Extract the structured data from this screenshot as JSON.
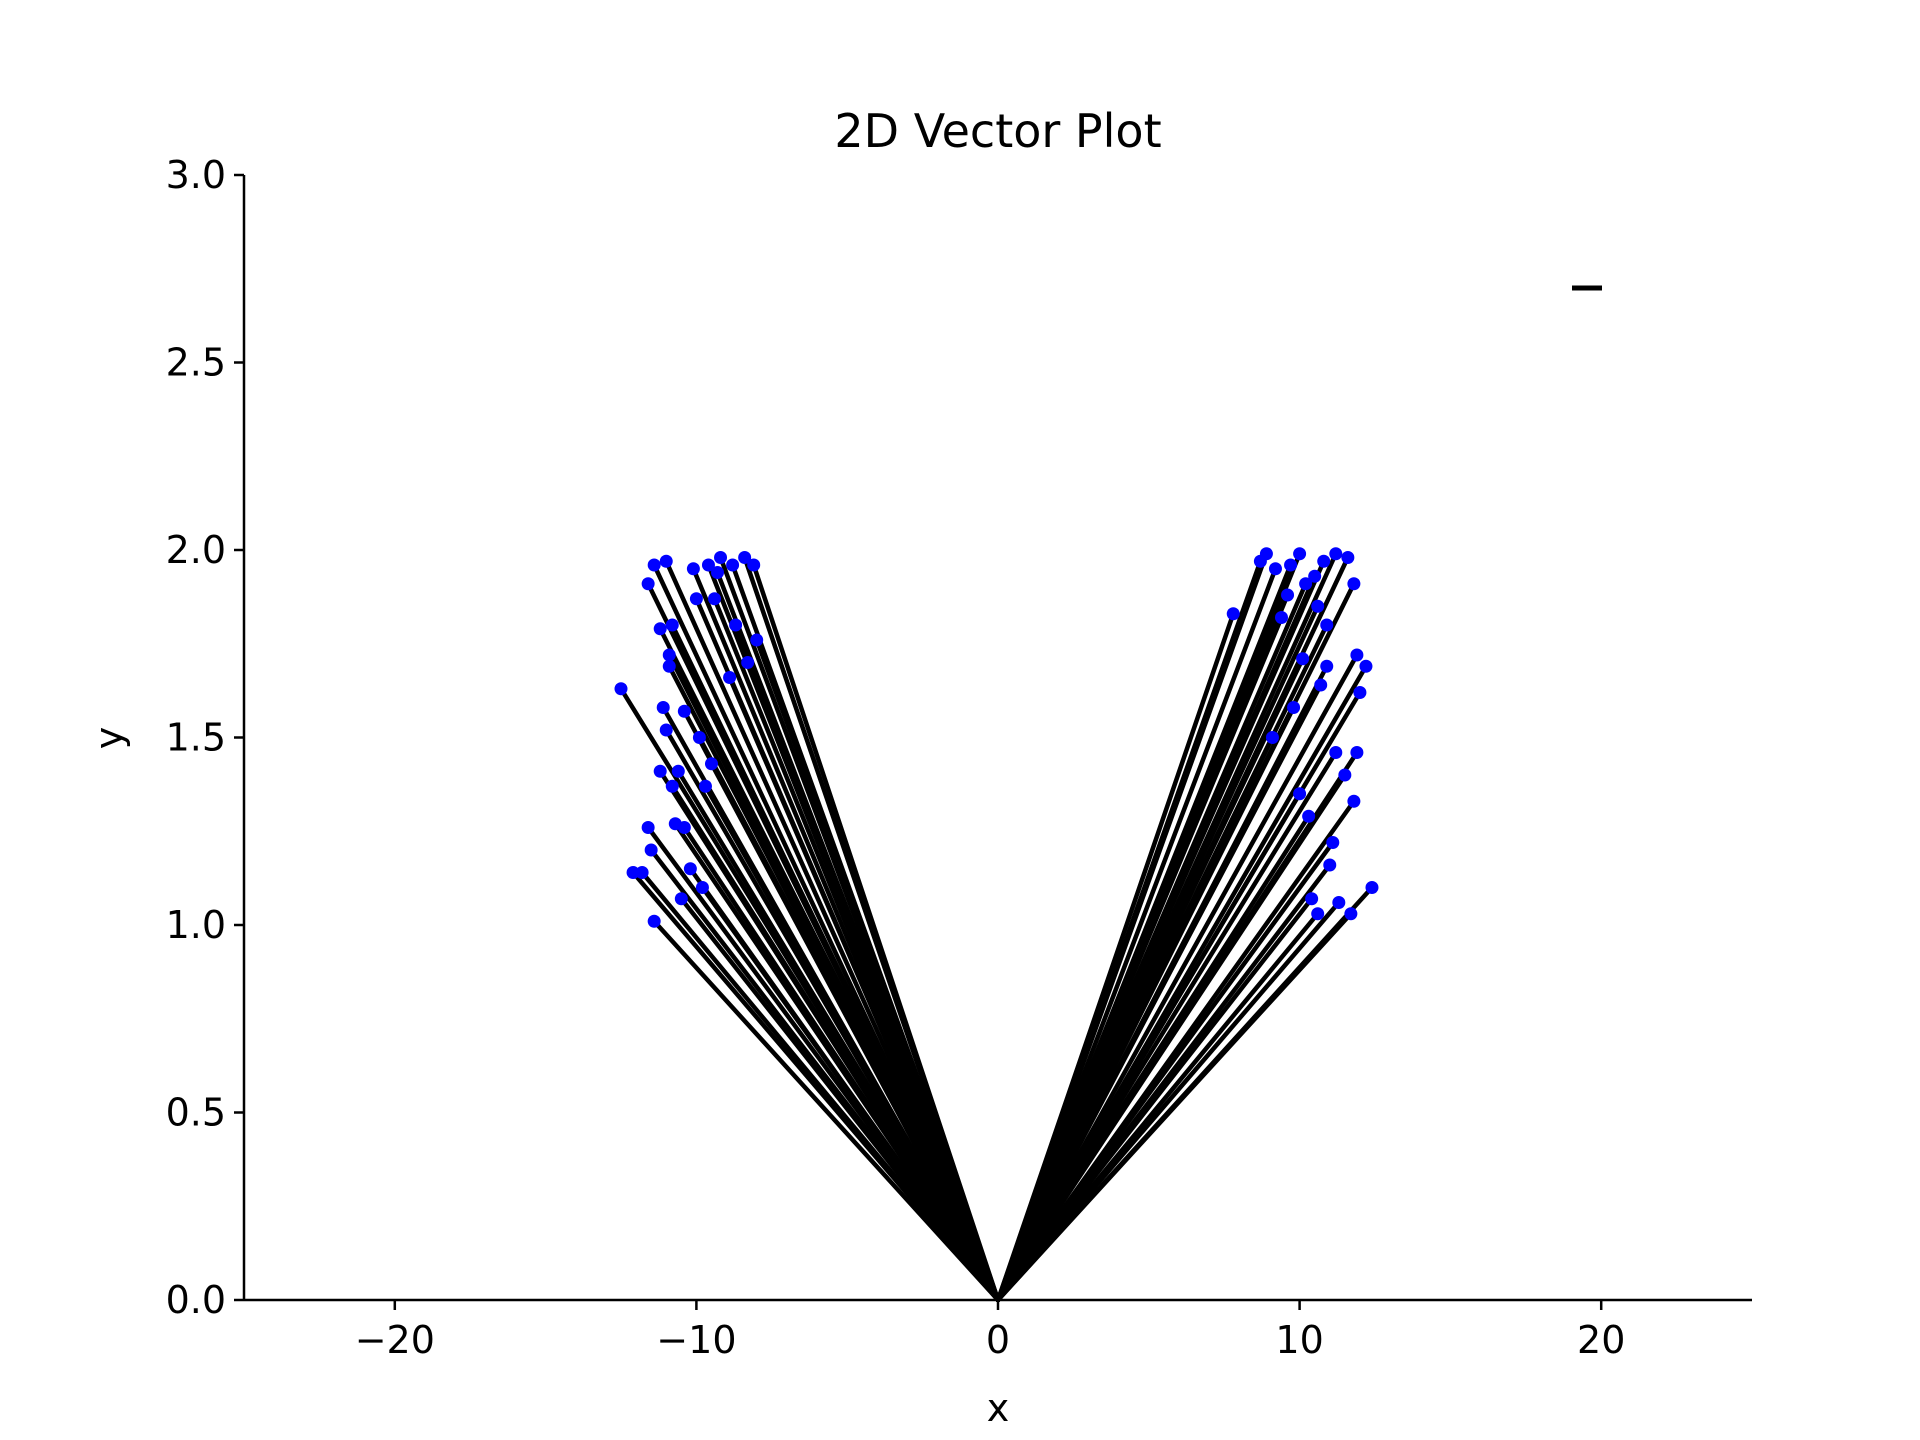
{
  "chart_data": {
    "type": "line",
    "title": "2D Vector Plot",
    "xlabel": "x",
    "ylabel": "y",
    "xlim": [
      -25,
      25
    ],
    "ylim": [
      0,
      3
    ],
    "x_ticks": [
      -20,
      -10,
      0,
      10,
      20
    ],
    "x_tick_labels": [
      "−20",
      "−10",
      "0",
      "10",
      "20"
    ],
    "y_ticks": [
      0.0,
      0.5,
      1.0,
      1.5,
      2.0,
      2.5,
      3.0
    ],
    "y_tick_labels": [
      "0.0",
      "0.5",
      "1.0",
      "1.5",
      "2.0",
      "2.5",
      "3.0"
    ],
    "grid": false,
    "legend": "top-right",
    "origin": [
      0,
      0
    ],
    "vector_color": "#000000",
    "tip_color": "#0000ff",
    "vectors": [
      {
        "x": -12.5,
        "y": 1.63
      },
      {
        "x": -12.1,
        "y": 1.14
      },
      {
        "x": -11.8,
        "y": 1.14
      },
      {
        "x": -11.6,
        "y": 1.26
      },
      {
        "x": -11.6,
        "y": 1.91
      },
      {
        "x": -11.5,
        "y": 1.2
      },
      {
        "x": -11.4,
        "y": 1.01
      },
      {
        "x": -11.4,
        "y": 1.96
      },
      {
        "x": -11.2,
        "y": 1.41
      },
      {
        "x": -11.2,
        "y": 1.79
      },
      {
        "x": -11.1,
        "y": 1.58
      },
      {
        "x": -11.0,
        "y": 1.52
      },
      {
        "x": -11.0,
        "y": 1.97
      },
      {
        "x": -10.9,
        "y": 1.69
      },
      {
        "x": -10.9,
        "y": 1.72
      },
      {
        "x": -10.8,
        "y": 1.8
      },
      {
        "x": -10.8,
        "y": 1.37
      },
      {
        "x": -10.7,
        "y": 1.27
      },
      {
        "x": -10.6,
        "y": 1.41
      },
      {
        "x": -10.5,
        "y": 1.07
      },
      {
        "x": -10.4,
        "y": 1.57
      },
      {
        "x": -10.4,
        "y": 1.26
      },
      {
        "x": -10.2,
        "y": 1.15
      },
      {
        "x": -10.1,
        "y": 1.95
      },
      {
        "x": -10.0,
        "y": 1.87
      },
      {
        "x": -9.9,
        "y": 1.5
      },
      {
        "x": -9.8,
        "y": 1.1
      },
      {
        "x": -9.7,
        "y": 1.37
      },
      {
        "x": -9.6,
        "y": 1.96
      },
      {
        "x": -9.5,
        "y": 1.43
      },
      {
        "x": -9.4,
        "y": 1.87
      },
      {
        "x": -9.3,
        "y": 1.94
      },
      {
        "x": -9.2,
        "y": 1.98
      },
      {
        "x": -8.9,
        "y": 1.66
      },
      {
        "x": -8.8,
        "y": 1.96
      },
      {
        "x": -8.7,
        "y": 1.8
      },
      {
        "x": -8.4,
        "y": 1.98
      },
      {
        "x": -8.3,
        "y": 1.7
      },
      {
        "x": -8.1,
        "y": 1.96
      },
      {
        "x": -8.0,
        "y": 1.76
      },
      {
        "x": 7.8,
        "y": 1.83
      },
      {
        "x": 8.7,
        "y": 1.97
      },
      {
        "x": 8.9,
        "y": 1.99
      },
      {
        "x": 9.1,
        "y": 1.5
      },
      {
        "x": 9.2,
        "y": 1.95
      },
      {
        "x": 9.4,
        "y": 1.82
      },
      {
        "x": 9.6,
        "y": 1.88
      },
      {
        "x": 9.7,
        "y": 1.96
      },
      {
        "x": 9.8,
        "y": 1.58
      },
      {
        "x": 10.0,
        "y": 1.99
      },
      {
        "x": 10.0,
        "y": 1.35
      },
      {
        "x": 10.1,
        "y": 1.71
      },
      {
        "x": 10.2,
        "y": 1.91
      },
      {
        "x": 10.3,
        "y": 1.29
      },
      {
        "x": 10.4,
        "y": 1.07
      },
      {
        "x": 10.5,
        "y": 1.93
      },
      {
        "x": 10.6,
        "y": 1.85
      },
      {
        "x": 10.6,
        "y": 1.03
      },
      {
        "x": 10.7,
        "y": 1.64
      },
      {
        "x": 10.8,
        "y": 1.97
      },
      {
        "x": 10.9,
        "y": 1.8
      },
      {
        "x": 10.9,
        "y": 1.69
      },
      {
        "x": 11.0,
        "y": 1.16
      },
      {
        "x": 11.1,
        "y": 1.22
      },
      {
        "x": 11.2,
        "y": 1.99
      },
      {
        "x": 11.2,
        "y": 1.46
      },
      {
        "x": 11.3,
        "y": 1.06
      },
      {
        "x": 11.5,
        "y": 1.4
      },
      {
        "x": 11.6,
        "y": 1.98
      },
      {
        "x": 11.7,
        "y": 1.03
      },
      {
        "x": 11.8,
        "y": 1.91
      },
      {
        "x": 11.8,
        "y": 1.33
      },
      {
        "x": 11.9,
        "y": 1.46
      },
      {
        "x": 11.9,
        "y": 1.72
      },
      {
        "x": 12.0,
        "y": 1.62
      },
      {
        "x": 12.2,
        "y": 1.69
      },
      {
        "x": 12.4,
        "y": 1.1
      }
    ]
  }
}
